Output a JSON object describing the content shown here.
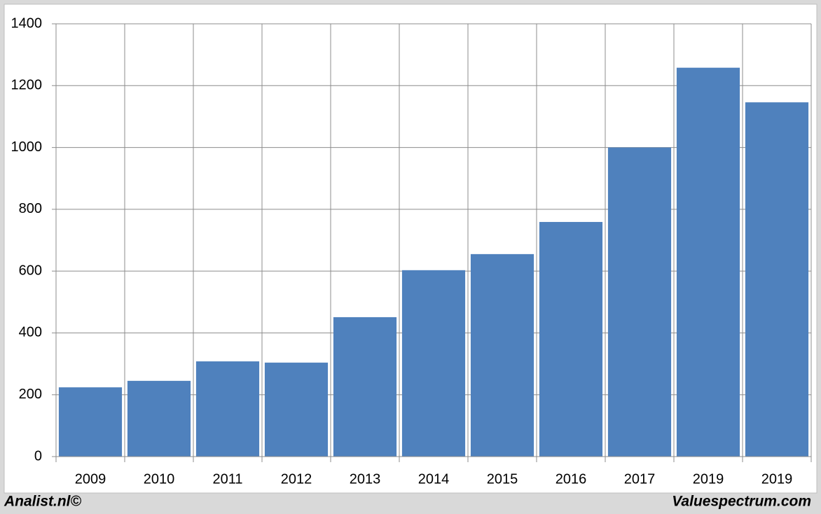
{
  "chart_data": {
    "type": "bar",
    "categories": [
      "2009",
      "2010",
      "2011",
      "2012",
      "2013",
      "2014",
      "2015",
      "2016",
      "2017",
      "2019",
      "2019"
    ],
    "values": [
      224,
      245,
      308,
      304,
      451,
      603,
      655,
      759,
      1000,
      1258,
      1146
    ],
    "color": "#4f81bd",
    "ylim": [
      0,
      1400
    ],
    "yticks": [
      0,
      200,
      400,
      600,
      800,
      1000,
      1200,
      1400
    ],
    "grid": true
  },
  "footer": {
    "left": "Analist.nl©",
    "right": "Valuespectrum.com"
  }
}
